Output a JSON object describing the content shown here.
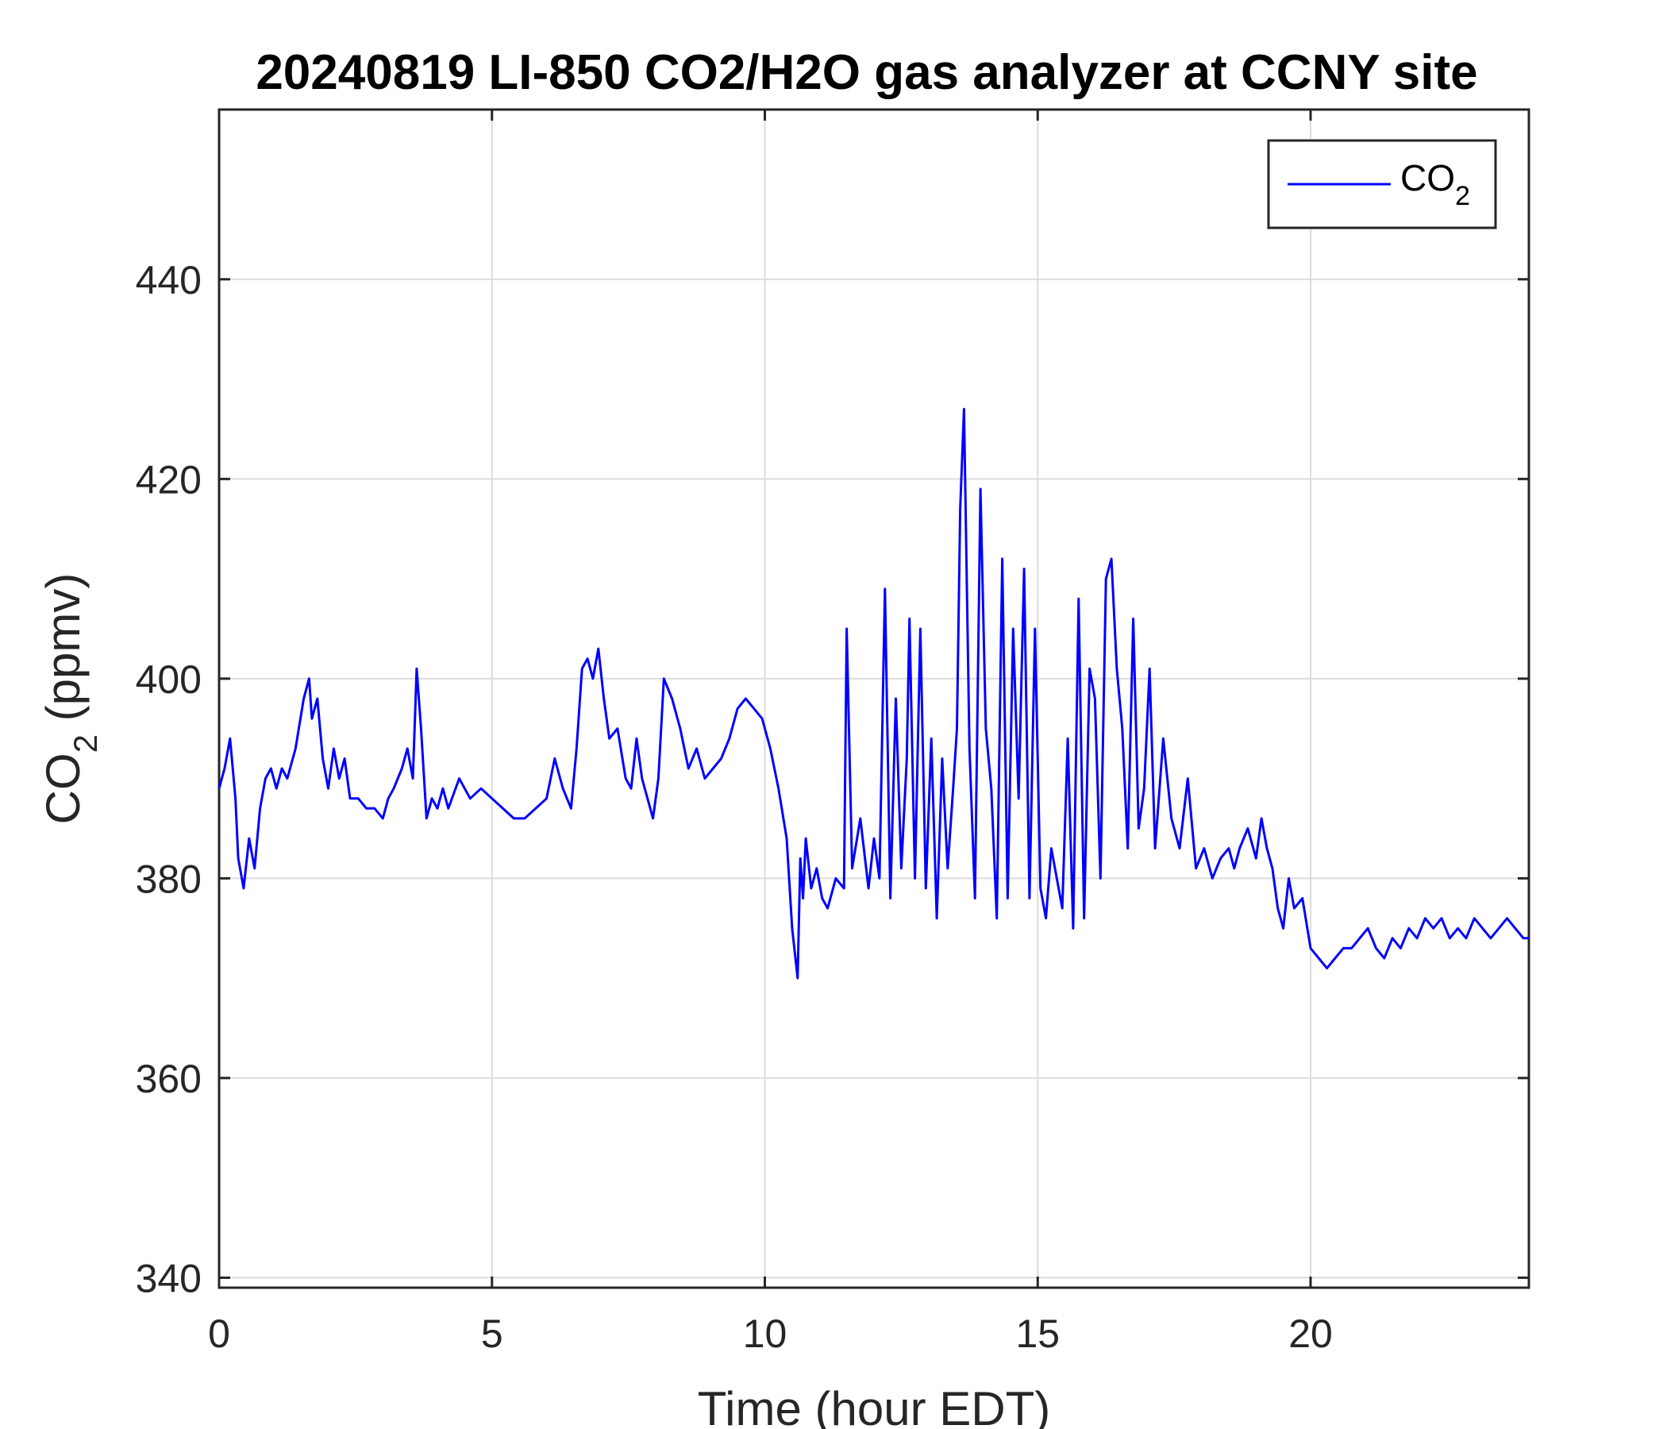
{
  "chart_data": {
    "type": "line",
    "title": "20240819 LI-850 CO2/H2O gas analyzer at CCNY site",
    "xlabel": "Time (hour EDT)",
    "ylabel": {
      "base": "CO",
      "sub": "2",
      "rest": " (ppmv)"
    },
    "xlim": [
      0,
      24
    ],
    "ylim": [
      339,
      457
    ],
    "xticks": [
      0,
      5,
      10,
      15,
      20
    ],
    "yticks": [
      340,
      360,
      380,
      400,
      420,
      440
    ],
    "grid": true,
    "legend": {
      "placement": "top-right",
      "entries": [
        {
          "base": "CO",
          "sub": "2"
        }
      ]
    },
    "series": [
      {
        "name": "CO2",
        "color": "#0000ff",
        "x": [
          0.0,
          0.1,
          0.2,
          0.3,
          0.35,
          0.45,
          0.55,
          0.65,
          0.75,
          0.85,
          0.95,
          1.05,
          1.15,
          1.25,
          1.4,
          1.55,
          1.65,
          1.7,
          1.8,
          1.9,
          2.0,
          2.1,
          2.2,
          2.3,
          2.4,
          2.55,
          2.7,
          2.85,
          3.0,
          3.1,
          3.2,
          3.35,
          3.45,
          3.55,
          3.62,
          3.7,
          3.8,
          3.9,
          4.0,
          4.1,
          4.2,
          4.4,
          4.6,
          4.8,
          5.0,
          5.2,
          5.4,
          5.6,
          5.8,
          6.0,
          6.15,
          6.3,
          6.45,
          6.55,
          6.65,
          6.75,
          6.85,
          6.95,
          7.05,
          7.15,
          7.3,
          7.45,
          7.55,
          7.65,
          7.75,
          7.85,
          7.95,
          8.05,
          8.15,
          8.3,
          8.45,
          8.6,
          8.75,
          8.9,
          9.05,
          9.2,
          9.35,
          9.5,
          9.65,
          9.8,
          9.95,
          10.1,
          10.25,
          10.4,
          10.5,
          10.6,
          10.65,
          10.7,
          10.75,
          10.85,
          10.95,
          11.05,
          11.15,
          11.3,
          11.45,
          11.5,
          11.6,
          11.75,
          11.9,
          12.0,
          12.1,
          12.2,
          12.3,
          12.4,
          12.5,
          12.6,
          12.65,
          12.75,
          12.85,
          12.95,
          13.05,
          13.15,
          13.25,
          13.35,
          13.45,
          13.52,
          13.58,
          13.65,
          13.75,
          13.85,
          13.95,
          14.05,
          14.15,
          14.25,
          14.35,
          14.45,
          14.55,
          14.65,
          14.75,
          14.85,
          14.95,
          15.05,
          15.15,
          15.25,
          15.35,
          15.45,
          15.55,
          15.65,
          15.75,
          15.85,
          15.95,
          16.05,
          16.15,
          16.25,
          16.35,
          16.45,
          16.55,
          16.65,
          16.75,
          16.85,
          16.95,
          17.05,
          17.15,
          17.3,
          17.45,
          17.6,
          17.75,
          17.9,
          18.05,
          18.2,
          18.35,
          18.5,
          18.6,
          18.7,
          18.85,
          19.0,
          19.1,
          19.2,
          19.3,
          19.4,
          19.5,
          19.6,
          19.7,
          19.85,
          20.0,
          20.15,
          20.3,
          20.45,
          20.6,
          20.75,
          20.9,
          21.05,
          21.2,
          21.35,
          21.5,
          21.65,
          21.8,
          21.95,
          22.1,
          22.25,
          22.4,
          22.55,
          22.7,
          22.85,
          23.0,
          23.15,
          23.3,
          23.45,
          23.6,
          23.75,
          23.9,
          24.0
        ],
        "values": [
          389,
          391,
          394,
          388,
          382,
          379,
          384,
          381,
          387,
          390,
          391,
          389,
          391,
          390,
          393,
          398,
          400,
          396,
          398,
          392,
          389,
          393,
          390,
          392,
          388,
          388,
          387,
          387,
          386,
          388,
          389,
          391,
          393,
          390,
          401,
          395,
          386,
          388,
          387,
          389,
          387,
          390,
          388,
          389,
          388,
          387,
          386,
          386,
          387,
          388,
          392,
          389,
          387,
          393,
          401,
          402,
          400,
          403,
          398,
          394,
          395,
          390,
          389,
          394,
          390,
          388,
          386,
          390,
          400,
          398,
          395,
          391,
          393,
          390,
          391,
          392,
          394,
          397,
          398,
          397,
          396,
          393,
          389,
          384,
          375,
          370,
          382,
          378,
          384,
          379,
          381,
          378,
          377,
          380,
          379,
          405,
          381,
          386,
          379,
          384,
          380,
          409,
          378,
          398,
          381,
          392,
          406,
          380,
          405,
          379,
          394,
          376,
          392,
          381,
          389,
          395,
          417,
          427,
          393,
          378,
          419,
          395,
          389,
          376,
          412,
          378,
          405,
          388,
          411,
          378,
          405,
          379,
          376,
          383,
          380,
          377,
          394,
          375,
          408,
          376,
          401,
          398,
          380,
          410,
          412,
          401,
          395,
          383,
          406,
          385,
          389,
          401,
          383,
          394,
          386,
          383,
          390,
          381,
          383,
          380,
          382,
          383,
          381,
          383,
          385,
          382,
          386,
          383,
          381,
          377,
          375,
          380,
          377,
          378,
          373,
          372,
          371,
          372,
          373,
          373,
          374,
          375,
          373,
          372,
          374,
          373,
          375,
          374,
          376,
          375,
          376,
          374,
          375,
          374,
          376,
          375,
          374,
          375,
          376,
          375,
          374,
          374
        ]
      }
    ]
  }
}
